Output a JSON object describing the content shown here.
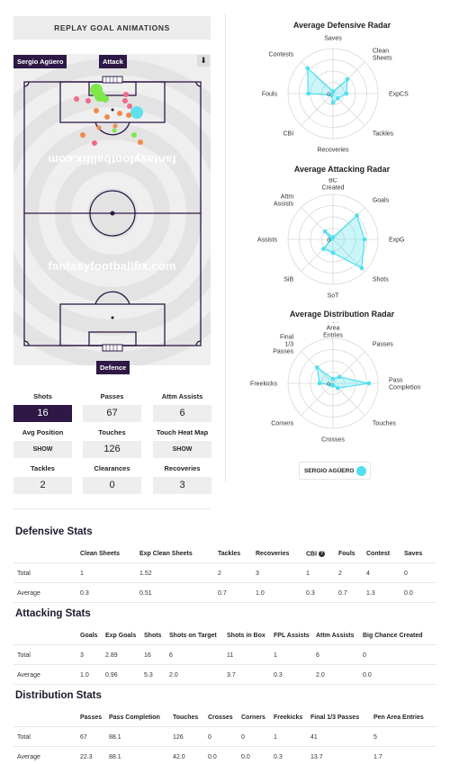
{
  "replay_button": "REPLAY GOAL ANIMATIONS",
  "pitch": {
    "player_name": "Sergio Agüero",
    "attack_label": "Attack",
    "defence_label": "Defence",
    "direction_icon": "arrow-down-icon",
    "watermark": "fantasyfootballfix.com",
    "shot_colors": {
      "goal": "#7ee84a",
      "on_target": "#5fe0ec",
      "off_target": "#f08a4b",
      "blocked": "#f06a8a"
    }
  },
  "stat_tiles": [
    {
      "label": "Shots",
      "value": "16"
    },
    {
      "label": "Passes",
      "value": "67"
    },
    {
      "label": "Attm Assists",
      "value": "6"
    },
    {
      "label": "Avg Position",
      "value": "SHOW"
    },
    {
      "label": "Touches",
      "value": "126"
    },
    {
      "label": "Touch Heat Map",
      "value": "SHOW"
    },
    {
      "label": "Tackles",
      "value": "2"
    },
    {
      "label": "Clearances",
      "value": "0"
    },
    {
      "label": "Recoveries",
      "value": "3"
    }
  ],
  "radars": {
    "color": "#4ee0f0",
    "center_label": "0",
    "defensive": {
      "title": "Average Defensive Radar",
      "axes": [
        "Saves",
        "Clean Sheets",
        "ExpCS",
        "Tackles",
        "Recoveries",
        "CBI",
        "Fouls",
        "Contests"
      ],
      "levels": [
        0.05,
        0.45,
        0.3,
        0.15,
        0.2,
        0.05,
        0.55,
        0.8
      ]
    },
    "attacking": {
      "title": "Average Attacking Radar",
      "axes": [
        "BC Created",
        "Goals",
        "ExpG",
        "Shots",
        "SoT",
        "SiB",
        "Assists",
        "Attm Assists"
      ],
      "levels": [
        0.05,
        0.75,
        0.7,
        0.9,
        0.3,
        0.3,
        0.05,
        0.25
      ]
    },
    "distribution": {
      "title": "Average Distribution Radar",
      "axes": [
        "Pen Area Entries",
        "Passes",
        "Pass Completion",
        "Touches",
        "Crosses",
        "Corners",
        "Freekicks",
        "Final 1/3 Passes"
      ],
      "levels": [
        0.1,
        0.2,
        0.8,
        0.15,
        0.05,
        0.05,
        0.3,
        0.5
      ]
    },
    "legend_label": "SERGIO AGÜERO"
  },
  "defensive_stats": {
    "title": "Defensive Stats",
    "columns": [
      "Clean Sheets",
      "Exp Clean Sheets",
      "Tackles",
      "Recoveries",
      "CBI",
      "Fouls",
      "Contest",
      "Saves"
    ],
    "info_icon": "info-icon",
    "rows": [
      {
        "label": "Total",
        "values": [
          "1",
          "1.52",
          "2",
          "3",
          "1",
          "2",
          "4",
          "0"
        ]
      },
      {
        "label": "Average",
        "values": [
          "0.3",
          "0.51",
          "0.7",
          "1.0",
          "0.3",
          "0.7",
          "1.3",
          "0.0"
        ]
      }
    ]
  },
  "attacking_stats": {
    "title": "Attacking Stats",
    "columns": [
      "Goals",
      "Exp Goals",
      "Shots",
      "Shots on Target",
      "Shots in Box",
      "FPL Assists",
      "Attm Assists",
      "Big Chance Created"
    ],
    "rows": [
      {
        "label": "Total",
        "values": [
          "3",
          "2.89",
          "16",
          "6",
          "11",
          "1",
          "6",
          "0"
        ]
      },
      {
        "label": "Average",
        "values": [
          "1.0",
          "0.96",
          "5.3",
          "2.0",
          "3.7",
          "0.3",
          "2.0",
          "0.0"
        ]
      }
    ]
  },
  "distribution_stats": {
    "title": "Distribution Stats",
    "columns": [
      "Passes",
      "Pass Completion",
      "Touches",
      "Crosses",
      "Corners",
      "Freekicks",
      "Final 1/3 Passes",
      "Pen Area Entries"
    ],
    "rows": [
      {
        "label": "Total",
        "values": [
          "67",
          "88.1",
          "126",
          "0",
          "0",
          "1",
          "41",
          "5"
        ]
      },
      {
        "label": "Average",
        "values": [
          "22.3",
          "88.1",
          "42.0",
          "0.0",
          "0.0",
          "0.3",
          "13.7",
          "1.7"
        ]
      }
    ]
  }
}
